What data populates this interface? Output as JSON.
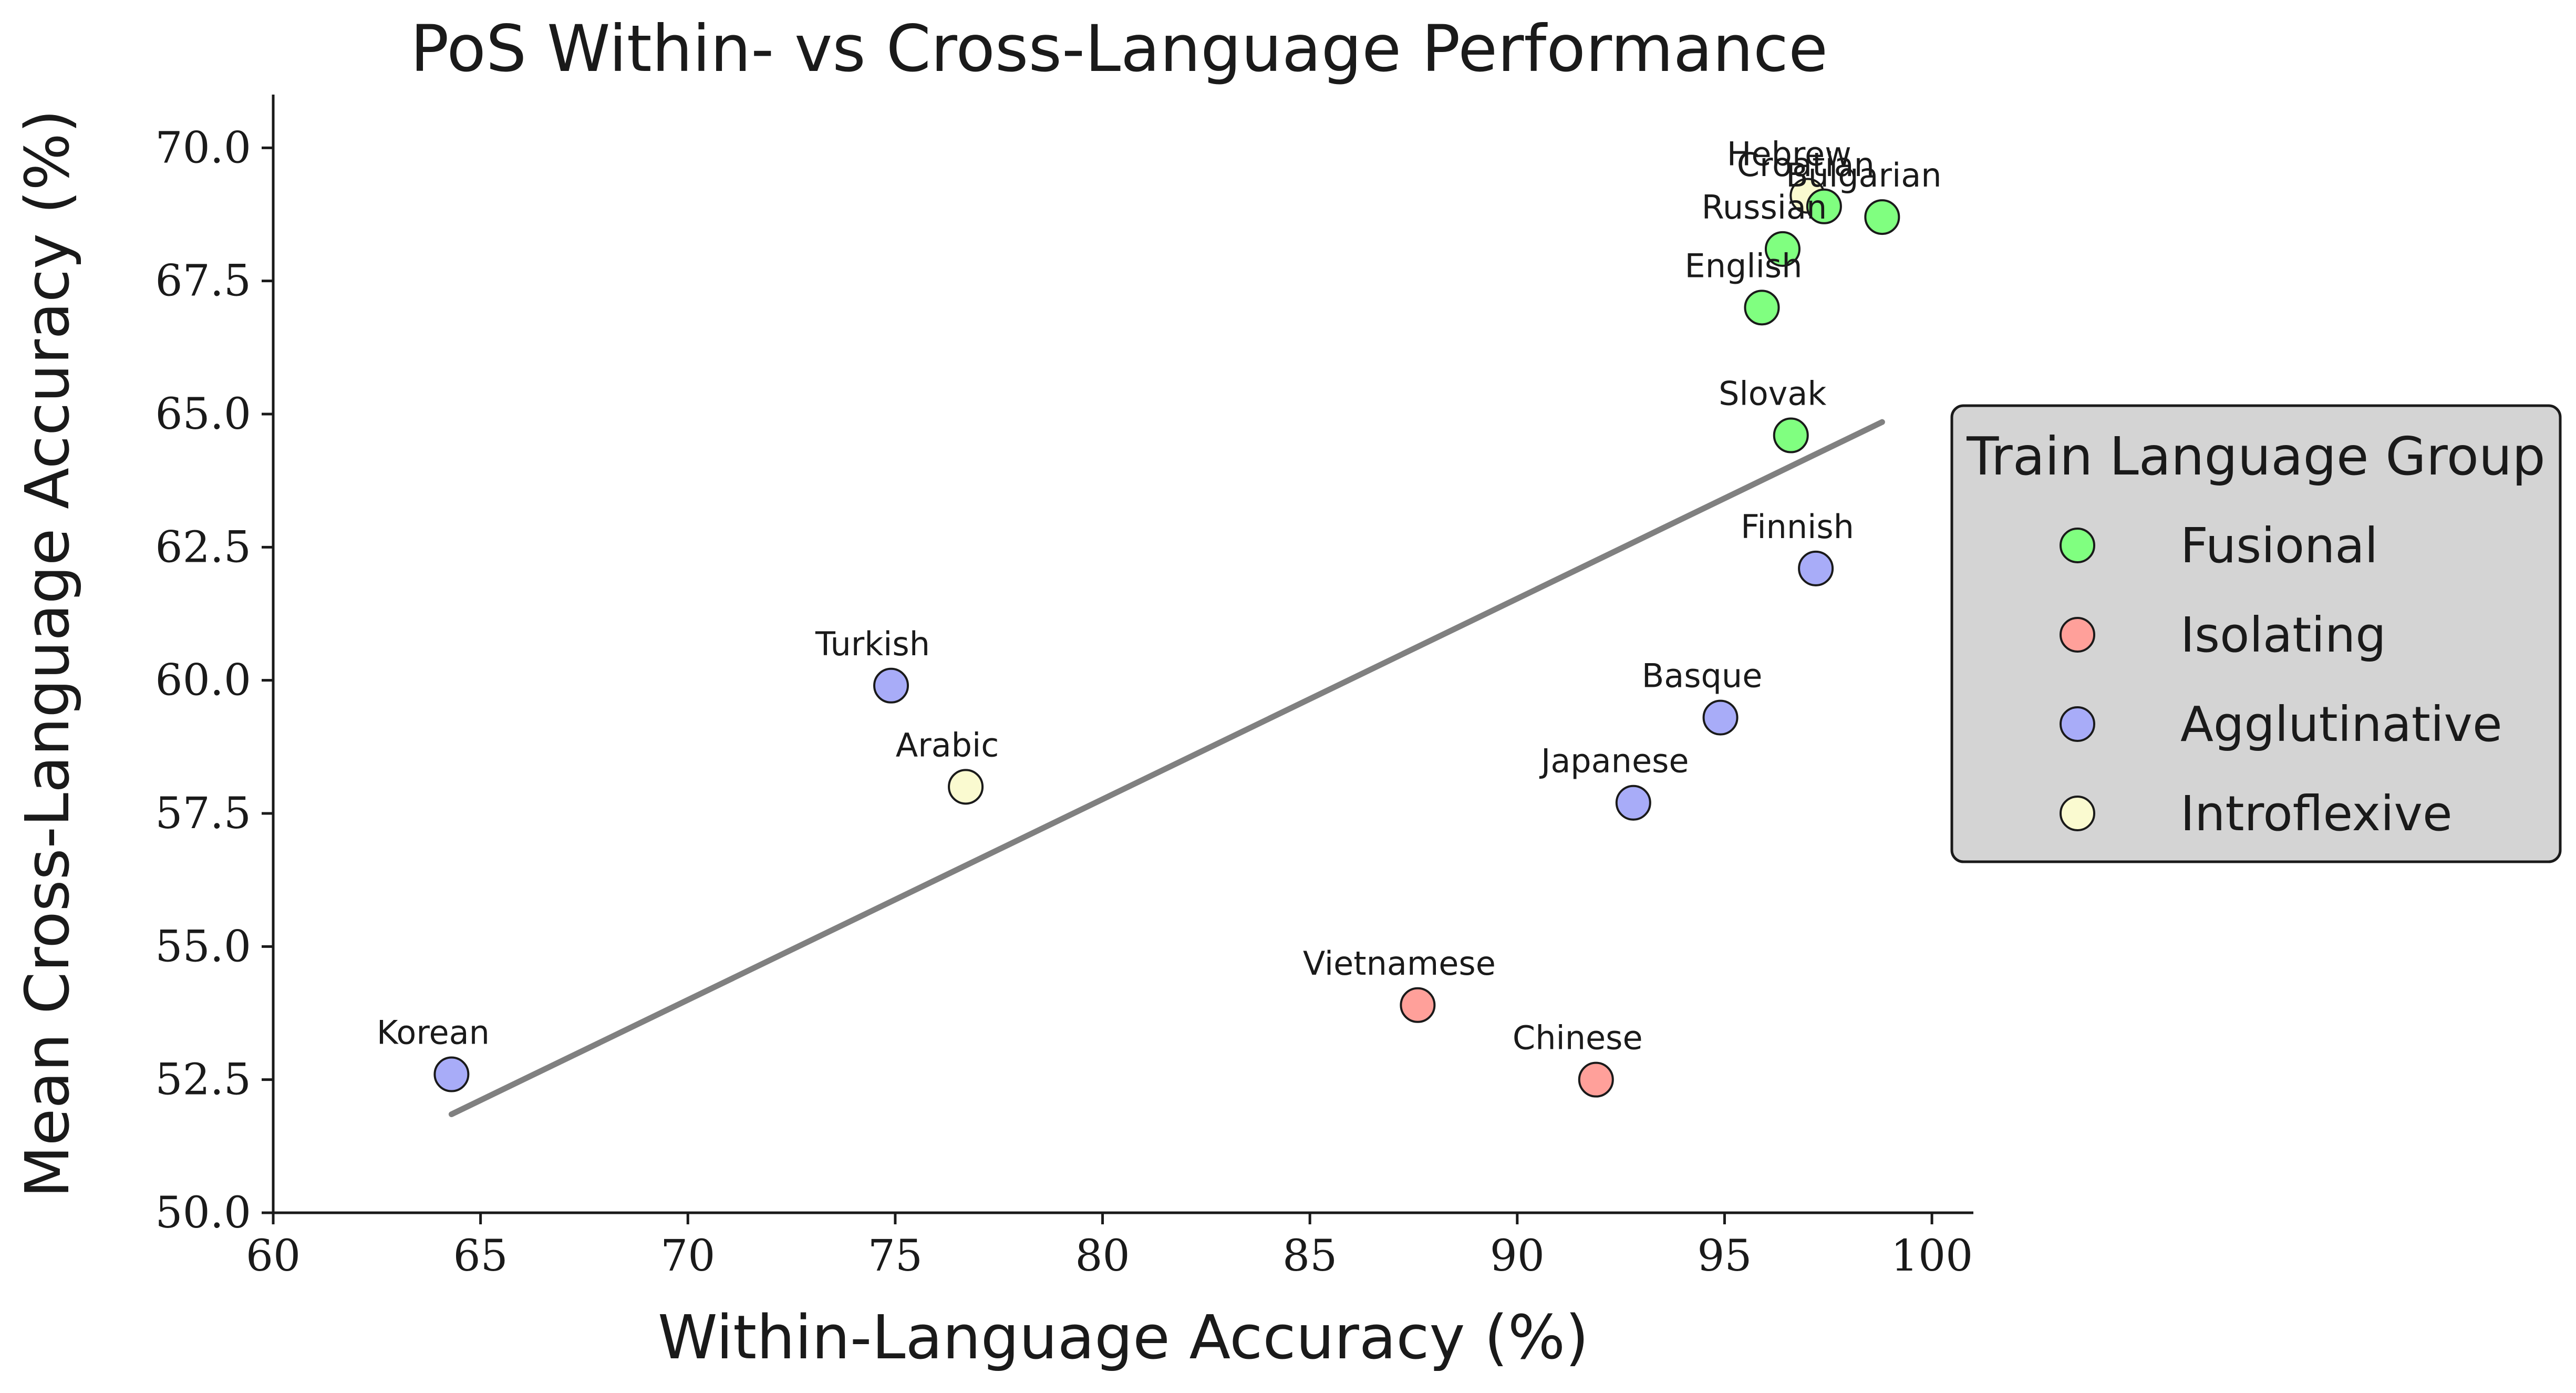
{
  "chart_data": {
    "type": "scatter",
    "title": "PoS Within- vs Cross-Language Performance",
    "xlabel": "Within-Language Accuracy (%)",
    "ylabel": "Mean Cross-Language Accuracy (%)",
    "xlim": [
      60,
      101
    ],
    "ylim": [
      50,
      71
    ],
    "xticks": [
      60,
      65,
      70,
      75,
      80,
      85,
      90,
      95,
      100
    ],
    "yticks": [
      50.0,
      52.5,
      55.0,
      57.5,
      60.0,
      62.5,
      65.0,
      67.5,
      70.0
    ],
    "xtick_labels": [
      "60",
      "65",
      "70",
      "75",
      "80",
      "85",
      "90",
      "95",
      "100"
    ],
    "ytick_labels": [
      "50.0",
      "52.5",
      "55.0",
      "57.5",
      "60.0",
      "62.5",
      "65.0",
      "67.5",
      "70.0"
    ],
    "grid": false,
    "legend": {
      "title": "Train Language Group",
      "placement": "center-right",
      "entries": [
        {
          "group": "Fusional",
          "label": "Fusional",
          "color": "#80ff80"
        },
        {
          "group": "Isolating",
          "label": "Isolating",
          "color": "#ffa09a"
        },
        {
          "group": "Agglutinative",
          "label": "Agglutinative",
          "color": "#a8acf8"
        },
        {
          "group": "Introflexive",
          "label": "Introflexive",
          "color": "#fafad0"
        }
      ]
    },
    "points": [
      {
        "label": "Hebrew",
        "x": 97.0,
        "y": 69.1,
        "group": "Introflexive"
      },
      {
        "label": "Croatian",
        "x": 97.4,
        "y": 68.9,
        "group": "Fusional"
      },
      {
        "label": "Bulgarian",
        "x": 98.8,
        "y": 68.7,
        "group": "Fusional"
      },
      {
        "label": "Russian",
        "x": 96.4,
        "y": 68.1,
        "group": "Fusional"
      },
      {
        "label": "English",
        "x": 95.9,
        "y": 67.0,
        "group": "Fusional"
      },
      {
        "label": "Slovak",
        "x": 96.6,
        "y": 64.6,
        "group": "Fusional"
      },
      {
        "label": "Finnish",
        "x": 97.2,
        "y": 62.1,
        "group": "Agglutinative"
      },
      {
        "label": "Turkish",
        "x": 74.9,
        "y": 59.9,
        "group": "Agglutinative"
      },
      {
        "label": "Basque",
        "x": 94.9,
        "y": 59.3,
        "group": "Agglutinative"
      },
      {
        "label": "Arabic",
        "x": 76.7,
        "y": 58.0,
        "group": "Introflexive"
      },
      {
        "label": "Japanese",
        "x": 92.8,
        "y": 57.7,
        "group": "Agglutinative"
      },
      {
        "label": "Vietnamese",
        "x": 87.6,
        "y": 53.9,
        "group": "Isolating"
      },
      {
        "label": "Korean",
        "x": 64.3,
        "y": 52.6,
        "group": "Agglutinative"
      },
      {
        "label": "Chinese",
        "x": 91.9,
        "y": 52.5,
        "group": "Isolating"
      }
    ],
    "trendline": {
      "x": [
        64.3,
        98.8
      ],
      "y": [
        51.85,
        64.85
      ],
      "color": "#808080"
    }
  }
}
